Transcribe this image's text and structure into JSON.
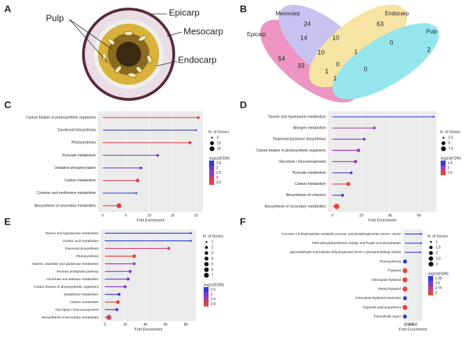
{
  "panels": [
    "A",
    "B",
    "C",
    "D",
    "E",
    "F"
  ],
  "illustration": {
    "labels": [
      "Pulp",
      "Epicarp",
      "Mesocarp",
      "Endocarp"
    ]
  },
  "venn": {
    "sets": [
      "Epicarp",
      "Mesocarp",
      "Endocarp",
      "Pulp"
    ],
    "regions": [
      54,
      24,
      63,
      2,
      14,
      10,
      10,
      1,
      0,
      33,
      1,
      0,
      0,
      1
    ]
  },
  "chart_data": [
    {
      "type": "lollipop",
      "x_label": "Fold Enrichment",
      "categories": [
        "Carbon fixation in photosynthetic organisms",
        "Carotenoid biosynthesis",
        "Photosynthesis",
        "Pyruvate metabolism",
        "Oxidative phosphorylation",
        "Carbon metabolism",
        "Cysteine and methionine metabolism",
        "Biosynthesis of secondary metabolites"
      ],
      "values": [
        20.5,
        20,
        18.7,
        11.8,
        8.2,
        7.5,
        7.2,
        3.5
      ],
      "genes": [
        6,
        5,
        7,
        6,
        6,
        8,
        5,
        15
      ],
      "fdr": [
        3.5,
        1.6,
        3.4,
        2.4,
        2.2,
        3.3,
        1.5,
        3.3
      ],
      "xlim": [
        -1,
        21.5
      ],
      "xticks": [
        0,
        5,
        10,
        15,
        20
      ],
      "size_legend": {
        "title": "N. of Genes",
        "values": [
          5,
          10,
          15
        ]
      },
      "color_legend": {
        "title": "-log10(FDR)",
        "values": [
          1.5,
          2.0,
          2.5,
          3.0,
          3.5
        ]
      }
    },
    {
      "type": "lollipop",
      "x_label": "Fold Enrichment",
      "categories": [
        "Taurine and hypotaurine metabolism",
        "Nitrogen metabolism",
        "Terpenoid backbone biosynthesis",
        "Carbon fixation in photosynthetic organisms",
        "Glycolysis / Gluconeogenesis",
        "Pyruvate metabolism",
        "Carbon metabolism",
        "Biosynthesis of cofactors",
        "Biosynthesis of secondary metabolites"
      ],
      "values": [
        70,
        29,
        22,
        18,
        16,
        13,
        11,
        7,
        3
      ],
      "genes": [
        2,
        3,
        3,
        4,
        4,
        3,
        5,
        3,
        9
      ],
      "fdr": [
        1.5,
        2.0,
        1.9,
        2.0,
        2.1,
        1.7,
        2.5,
        1.5,
        2.5
      ],
      "xlim": [
        -3,
        72
      ],
      "xticks": [
        0,
        20,
        40,
        60
      ],
      "size_legend": {
        "title": "N. of Genes",
        "values": [
          2.5,
          5.0,
          7.5
        ]
      },
      "color_legend": {
        "title": "-log10(FDR)",
        "values": [
          1.5,
          2.0,
          2.5
        ]
      }
    },
    {
      "type": "lollipop",
      "x_label": "Fold Enrichment",
      "categories": [
        "Taurine and hypotaurine metabolism",
        "Linoleic acid metabolism",
        "Flavonoid biosynthesis",
        "Photosynthesis",
        "Alanine, aspartate and glutamate metabolism",
        "Pentose phosphate pathway",
        "Ascorbate and aldarate metabolism",
        "Carbon fixation in photosynthetic organisms",
        "Glutathione metabolism",
        "Carbon metabolism",
        "Glycolysis / Gluconeogenesis",
        "Biosynthesis of secondary metabolites"
      ],
      "values": [
        85,
        85,
        63,
        29,
        29,
        25,
        23,
        20,
        14,
        13,
        12,
        4
      ],
      "genes": [
        1,
        1,
        2,
        3,
        2,
        2,
        2,
        2,
        2,
        3,
        2,
        7
      ],
      "fdr": [
        1.6,
        1.6,
        2.5,
        2.8,
        2.2,
        2.1,
        2.0,
        2.1,
        1.7,
        2.8,
        1.7,
        2.6
      ],
      "xlim": [
        -4,
        90
      ],
      "xticks": [
        0,
        20,
        40,
        60,
        80
      ],
      "size_legend": {
        "title": "N. of Genes",
        "values": [
          1,
          2,
          3,
          4,
          5,
          6,
          7
        ]
      },
      "color_legend": {
        "title": "-log10(FDR)",
        "values": [
          1.6,
          2.0,
          2.4,
          2.8
        ]
      }
    },
    {
      "type": "lollipop",
      "x_label": "Fold Enrichment",
      "categories": [
        "Fructose 1,6-bisphosphate metabolic process, and phosphoglycerate kinase, cancer",
        "FMN adenylyltransferase activity, and Purple acid phosphatase",
        "glyceraldehyde-3-phosphate dehydrogenase (NAD+) (phosphorylating) activity",
        "Photosynthesis",
        "Thylakoid",
        "Chloroplast thylakoid",
        "Plastid thylakoid",
        "Chloroplast thylakoid membrane",
        "Organelle subcompartment",
        "Extracellular region"
      ],
      "values": [
        1000,
        1000,
        950,
        15,
        12,
        12,
        12,
        14,
        10,
        8
      ],
      "genes": [
        1,
        1,
        1,
        2,
        3,
        3,
        3,
        2,
        3,
        2
      ],
      "fdr": [
        2.25,
        2.25,
        2.3,
        2.25,
        3.0,
        3.0,
        3.0,
        2.3,
        3.0,
        2.25
      ],
      "xlim": [
        -100,
        1100
      ],
      "xticks": [
        0,
        200,
        400,
        600
      ],
      "size_legend": {
        "title": "N. of Genes",
        "values": [
          1.0,
          1.5,
          2.0,
          2.5,
          3.0
        ]
      },
      "color_legend": {
        "title": "-log10(FDR)",
        "values": [
          2.25,
          2.5,
          2.75,
          3.0
        ]
      }
    }
  ]
}
